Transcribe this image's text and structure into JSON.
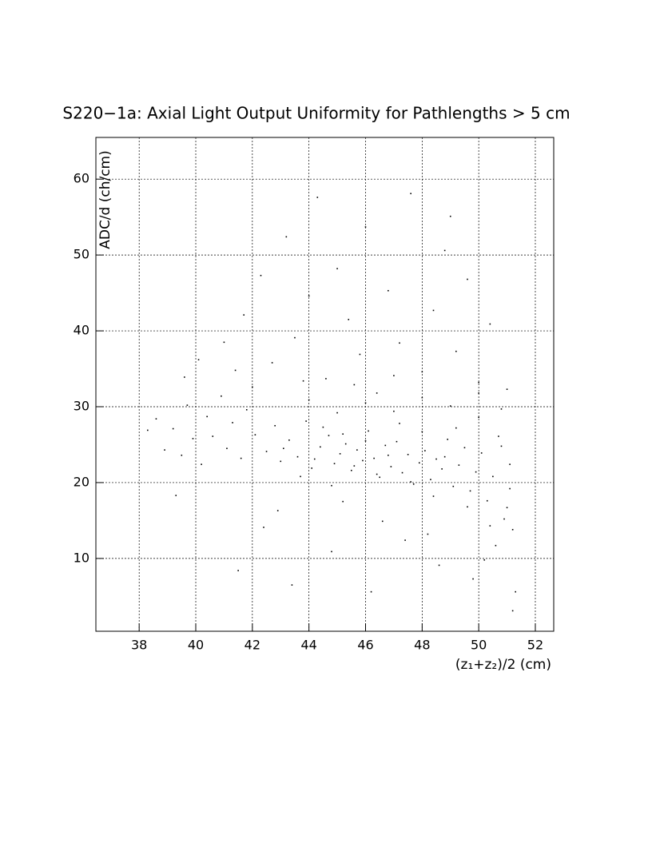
{
  "chart_data": {
    "type": "scatter",
    "title": "S220−1a: Axial Light Output Uniformity for Pathlengths > 5 cm",
    "x_label": "(z₁+z₂)/2 (cm)",
    "y_label": "ADC/d (ch/cm)",
    "xlim": [
      36.47,
      52.65
    ],
    "ylim": [
      0.4,
      65.5
    ],
    "xticks": [
      38,
      40,
      42,
      44,
      46,
      48,
      50,
      52
    ],
    "yticks": [
      10,
      20,
      30,
      40,
      50,
      60
    ],
    "grid": true,
    "color": "#000000",
    "x": [
      42.1,
      42.5,
      42.8,
      43.0,
      43.3,
      43.6,
      43.9,
      44.1,
      44.4,
      44.7,
      44.9,
      45.1,
      45.3,
      45.5,
      45.7,
      45.9,
      46.1,
      46.3,
      46.5,
      46.7,
      46.9,
      47.1,
      47.3,
      47.5,
      47.7,
      47.9,
      48.1,
      48.3,
      48.5,
      48.7,
      48.9,
      49.1,
      49.3,
      49.5,
      49.7,
      49.9,
      50.1,
      50.3,
      50.5,
      50.7,
      50.9,
      51.1,
      51.2,
      38.3,
      38.6,
      38.9,
      39.2,
      39.5,
      39.7,
      39.9,
      40.2,
      40.4,
      40.6,
      40.9,
      41.1,
      41.3,
      41.6,
      41.8,
      40.1,
      41.0,
      41.7,
      42.3,
      42.7,
      43.2,
      43.5,
      44.0,
      44.3,
      44.6,
      45.0,
      45.4,
      45.8,
      46.0,
      46.4,
      46.8,
      47.2,
      47.6,
      48.0,
      48.4,
      48.8,
      49.2,
      49.6,
      50.0,
      50.4,
      50.8,
      49.0,
      47.0,
      45.6,
      43.8,
      42.0,
      41.4,
      39.6,
      41.5,
      42.9,
      43.4,
      44.8,
      46.2,
      47.4,
      48.6,
      49.8,
      50.6,
      51.2,
      51.3,
      39.3,
      42.4,
      45.2,
      46.6,
      48.2,
      50.2,
      51.0,
      43.1,
      43.7,
      44.2,
      44.5,
      44.8,
      45.2,
      45.6,
      46.0,
      46.4,
      46.8,
      47.2,
      47.6,
      48.0,
      48.4,
      48.8,
      49.2,
      49.6,
      50.0,
      50.4,
      50.8,
      51.1,
      44.0,
      45.0,
      46.0,
      47.0,
      48.0,
      49.0,
      50.0,
      51.0
    ],
    "values": [
      26.3,
      24.1,
      27.5,
      22.8,
      25.6,
      23.4,
      28.1,
      21.9,
      24.7,
      26.2,
      22.5,
      23.8,
      25.1,
      21.6,
      24.3,
      22.9,
      26.8,
      23.2,
      20.7,
      24.9,
      22.1,
      25.4,
      21.3,
      23.7,
      19.8,
      22.6,
      24.2,
      20.4,
      23.1,
      21.8,
      25.7,
      19.5,
      22.3,
      24.6,
      18.9,
      21.4,
      23.9,
      17.6,
      20.8,
      26.1,
      15.2,
      22.4,
      13.8,
      26.9,
      28.4,
      24.3,
      27.1,
      23.6,
      30.2,
      25.8,
      22.4,
      28.7,
      26.1,
      31.4,
      24.5,
      27.9,
      23.2,
      29.6,
      36.2,
      38.5,
      42.1,
      47.3,
      35.8,
      52.4,
      39.1,
      44.6,
      57.6,
      33.7,
      48.2,
      41.5,
      36.9,
      53.7,
      31.8,
      45.3,
      38.4,
      58.1,
      34.6,
      42.7,
      50.6,
      37.3,
      46.8,
      33.2,
      40.9,
      29.7,
      55.1,
      34.1,
      32.9,
      33.4,
      32.6,
      34.8,
      33.9,
      8.4,
      16.3,
      6.5,
      10.9,
      5.6,
      12.4,
      9.1,
      7.3,
      11.7,
      3.1,
      5.6,
      18.3,
      14.1,
      17.5,
      14.9,
      13.2,
      9.8,
      16.7,
      24.5,
      20.8,
      23.1,
      27.3,
      19.6,
      26.4,
      22.2,
      25.5,
      21.1,
      23.6,
      27.8,
      20.1,
      26.7,
      18.2,
      23.4,
      27.2,
      16.8,
      28.6,
      14.3,
      24.8,
      19.2,
      30.9,
      29.2,
      30.5,
      29.4,
      31.2,
      30.1,
      31.8,
      32.3
    ]
  }
}
